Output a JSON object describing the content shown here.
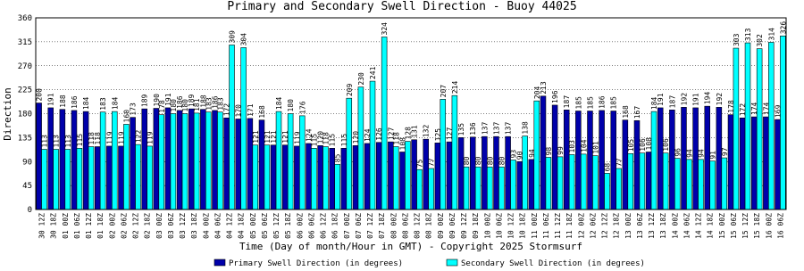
{
  "chart_data": {
    "type": "bar",
    "title": "Primary and Secondary Swell Direction - Buoy 44025",
    "x_label": "Time (Day of month/Hour in GMT) - Copyright 2025 Stormsurf",
    "y_label": "Direction",
    "categories": [
      "30 12Z",
      "30 18Z",
      "01 00Z",
      "01 06Z",
      "01 12Z",
      "01 18Z",
      "02 00Z",
      "02 06Z",
      "02 12Z",
      "02 18Z",
      "03 00Z",
      "03 06Z",
      "03 12Z",
      "03 18Z",
      "04 00Z",
      "04 06Z",
      "04 12Z",
      "04 18Z",
      "05 00Z",
      "05 06Z",
      "05 12Z",
      "05 18Z",
      "06 00Z",
      "06 06Z",
      "06 12Z",
      "06 18Z",
      "07 00Z",
      "07 06Z",
      "07 12Z",
      "07 18Z",
      "08 00Z",
      "08 06Z",
      "08 12Z",
      "08 18Z",
      "09 00Z",
      "09 06Z",
      "09 12Z",
      "09 18Z",
      "10 00Z",
      "10 06Z",
      "10 12Z",
      "10 18Z",
      "11 00Z",
      "11 06Z",
      "11 12Z",
      "11 18Z",
      "12 00Z",
      "12 06Z",
      "12 12Z",
      "12 18Z",
      "13 00Z",
      "13 06Z",
      "13 12Z",
      "13 18Z",
      "14 00Z",
      "14 06Z",
      "14 12Z",
      "14 18Z",
      "15 00Z",
      "15 06Z",
      "15 12Z",
      "15 18Z",
      "16 00Z",
      "16 06Z"
    ],
    "series": [
      {
        "name": "Primary Swell Direction (in degrees)",
        "color": "#0000aa",
        "values": [
          200,
          191,
          188,
          186,
          184,
          118,
          119,
          119,
          173,
          189,
          190,
          191,
          186,
          189,
          188,
          186,
          172,
          170,
          171,
          168,
          121,
          121,
          119,
          124,
          120,
          115,
          115,
          120,
          124,
          126,
          127,
          108,
          131,
          132,
          125,
          127,
          135,
          136,
          137,
          137,
          137,
          90,
          94,
          213,
          196,
          187,
          185,
          185,
          186,
          185,
          168,
          167,
          108,
          191,
          187,
          192,
          191,
          194,
          192,
          178,
          172,
          174,
          174,
          169
        ]
      },
      {
        "name": "Secondary Swell Direction (in degrees)",
        "color": "#00ffff",
        "values": [
          113,
          113,
          113,
          115,
          118,
          183,
          184,
          160,
          122,
          119,
          178,
          180,
          180,
          181,
          183,
          183,
          309,
          304,
          121,
          121,
          184,
          180,
          176,
          115,
          118,
          85,
          209,
          230,
          241,
          324,
          118,
          128,
          75,
          77,
          207,
          214,
          80,
          80,
          80,
          80,
          93,
          138,
          204,
          98,
          99,
          103,
          104,
          101,
          68,
          77,
          105,
          106,
          184,
          106,
          96,
          94,
          94,
          91,
          97,
          303,
          313,
          302,
          314,
          326
        ]
      }
    ],
    "ylim": [
      0,
      360
    ],
    "yticks": [
      0,
      45,
      90,
      135,
      180,
      225,
      270,
      315,
      360
    ],
    "grid": true
  }
}
